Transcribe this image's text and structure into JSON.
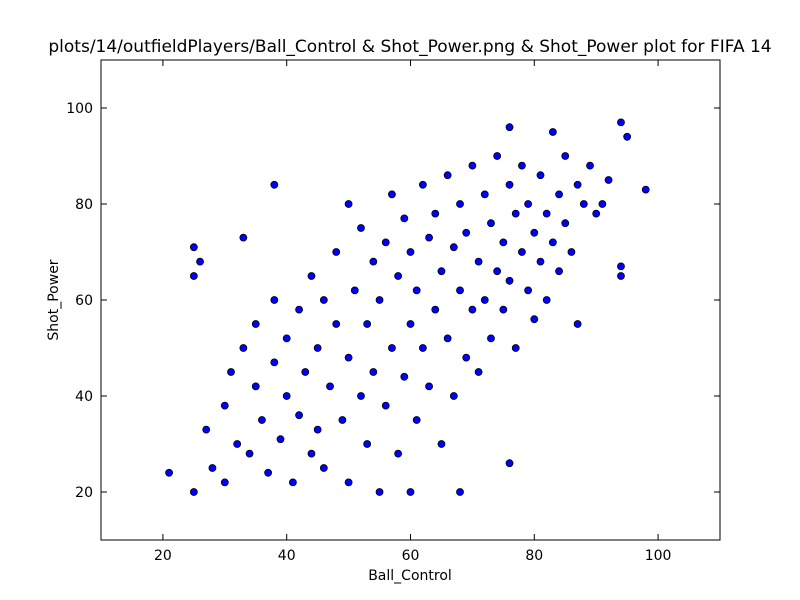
{
  "chart_data": {
    "type": "scatter",
    "title": "plots/14/outfieldPlayers/Ball_Control & Shot_Power.png & Shot_Power plot for FIFA 14",
    "x_label": "Ball_Control",
    "y_label": "Shot_Power",
    "color": "#0000ff",
    "xlim": [
      10,
      110
    ],
    "xticks": [
      20,
      40,
      60,
      80,
      100
    ],
    "ylim": [
      10,
      110
    ],
    "yticks": [
      20,
      40,
      60,
      80,
      100
    ],
    "x": [
      21,
      25,
      25,
      25,
      26,
      33,
      38,
      76,
      68,
      94,
      95,
      98,
      94,
      94,
      76,
      83,
      27,
      28,
      30,
      30,
      31,
      32,
      33,
      34,
      35,
      35,
      36,
      37,
      38,
      38,
      39,
      40,
      40,
      41,
      42,
      42,
      43,
      44,
      44,
      45,
      45,
      46,
      46,
      47,
      48,
      48,
      49,
      50,
      50,
      50,
      51,
      52,
      52,
      53,
      53,
      54,
      54,
      55,
      55,
      56,
      56,
      57,
      57,
      58,
      58,
      59,
      59,
      60,
      60,
      60,
      61,
      61,
      62,
      62,
      63,
      63,
      64,
      64,
      65,
      65,
      66,
      66,
      67,
      67,
      68,
      68,
      69,
      69,
      70,
      70,
      71,
      71,
      72,
      72,
      73,
      73,
      74,
      74,
      75,
      75,
      76,
      76,
      77,
      77,
      78,
      78,
      79,
      79,
      80,
      80,
      81,
      81,
      82,
      82,
      83,
      84,
      84,
      85,
      85,
      86,
      87,
      87,
      88,
      89,
      90,
      91,
      92
    ],
    "values": [
      24,
      20,
      71,
      65,
      68,
      73,
      84,
      96,
      20,
      97,
      94,
      83,
      65,
      67,
      26,
      95,
      33,
      25,
      22,
      38,
      45,
      30,
      50,
      28,
      42,
      55,
      35,
      24,
      47,
      60,
      31,
      52,
      40,
      22,
      58,
      36,
      45,
      28,
      65,
      50,
      33,
      60,
      25,
      42,
      70,
      55,
      35,
      48,
      80,
      22,
      62,
      40,
      75,
      30,
      55,
      68,
      45,
      20,
      60,
      72,
      38,
      50,
      82,
      28,
      65,
      44,
      77,
      55,
      20,
      70,
      62,
      35,
      84,
      50,
      73,
      42,
      58,
      78,
      30,
      66,
      86,
      52,
      71,
      40,
      62,
      80,
      48,
      74,
      88,
      58,
      68,
      45,
      82,
      60,
      76,
      52,
      90,
      66,
      72,
      58,
      84,
      64,
      78,
      50,
      88,
      70,
      62,
      80,
      74,
      56,
      86,
      68,
      78,
      60,
      72,
      82,
      66,
      90,
      76,
      70,
      84,
      55,
      80,
      88,
      78,
      80,
      85
    ]
  }
}
